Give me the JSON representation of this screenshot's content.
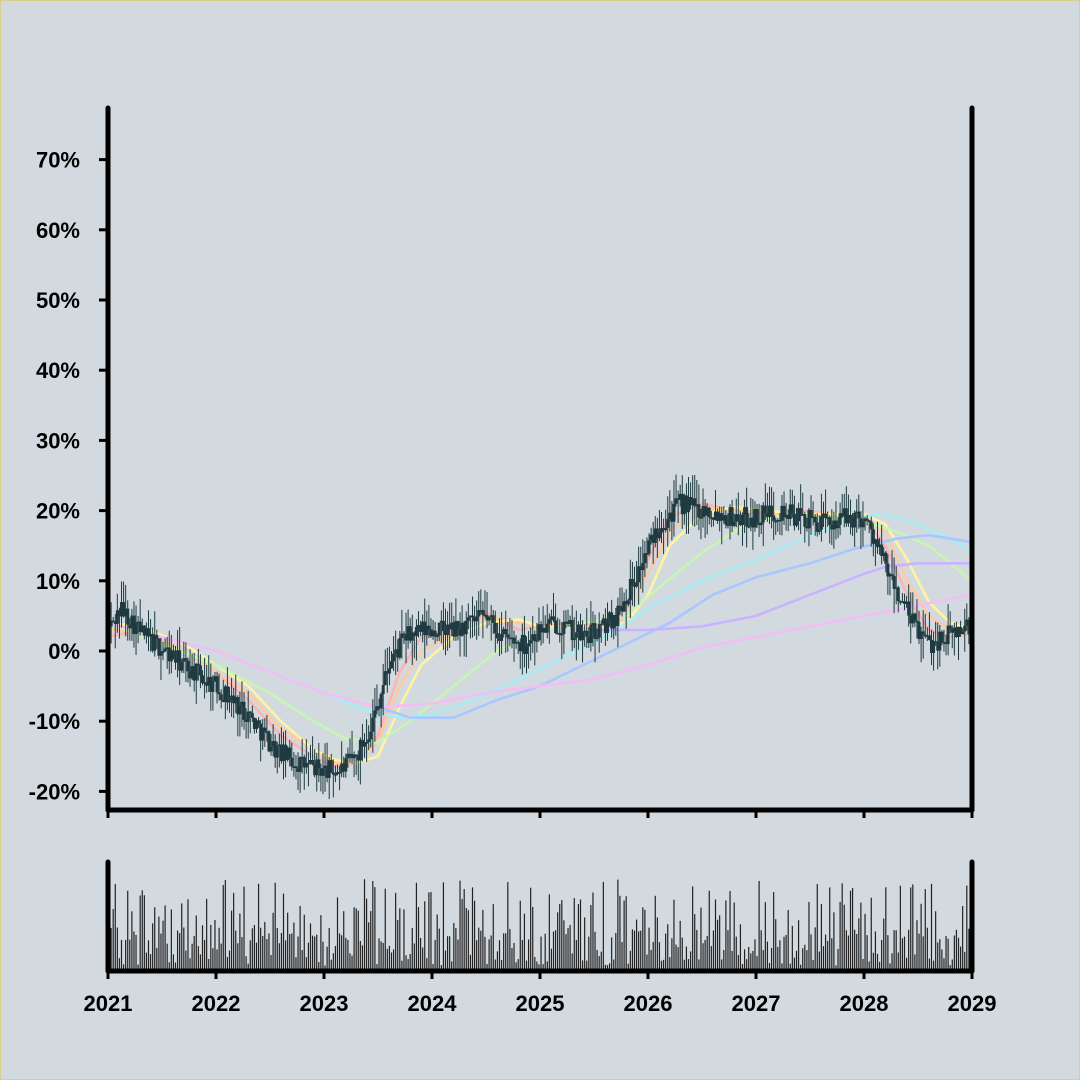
{
  "colors": {
    "background": "#d2dadf",
    "candle": "#1f3a40",
    "axis": "#000000",
    "volume": "#222222",
    "ma_lines": [
      "#ffb3b3",
      "#ffc9a3",
      "#fff3a0",
      "#c8f5b4",
      "#a8ecf5",
      "#a9c7ff",
      "#c9b3ff",
      "#f5bdf5"
    ]
  },
  "chart_data": [
    {
      "type": "candlestick",
      "title": "",
      "xlabel": "",
      "ylabel": "",
      "x_ticks": [
        "2021",
        "2022",
        "2023",
        "2024",
        "2025",
        "2026",
        "2027",
        "2028",
        "2029"
      ],
      "y_ticks": [
        "-20%",
        "-10%",
        "0%",
        "10%",
        "20%",
        "30%",
        "40%",
        "50%",
        "60%",
        "70%"
      ],
      "x_range": [
        2021,
        2029
      ],
      "ylim": [
        -22,
        78
      ],
      "grid": false,
      "frequency": "weekly",
      "path_x": [
        2021.0,
        2021.12,
        2021.35,
        2021.7,
        2022.0,
        2022.3,
        2022.55,
        2022.75,
        2023.0,
        2023.15,
        2023.3,
        2023.45,
        2023.6,
        2023.75,
        2023.95,
        2024.25,
        2024.5,
        2024.65,
        2024.85,
        2025.0,
        2025.15,
        2025.4,
        2025.55,
        2025.7,
        2025.9,
        2026.1,
        2026.3,
        2026.55,
        2026.8,
        2027.0,
        2027.2,
        2027.4,
        2027.65,
        2027.8,
        2028.0,
        2028.1,
        2028.25,
        2028.45,
        2028.6,
        2028.75,
        2028.9,
        2029.0
      ],
      "path_close": [
        3,
        6,
        2,
        -2,
        -5,
        -9,
        -14,
        -16,
        -17,
        -17,
        -15,
        -10,
        -2,
        2,
        3,
        3,
        5,
        2,
        1,
        3,
        4,
        2,
        3,
        5,
        11,
        18,
        21,
        20,
        19,
        19,
        20,
        19,
        18,
        19,
        19,
        16,
        10,
        4,
        1,
        2,
        3,
        4
      ],
      "moving_averages": [
        {
          "x": [
            2021.0,
            2021.3,
            2021.7,
            2022.0,
            2022.3,
            2022.6,
            2022.9,
            2023.1,
            2023.3,
            2023.5,
            2023.7,
            2023.9,
            2024.2,
            2024.5,
            2024.8,
            2025.0,
            2025.3,
            2025.6,
            2025.8,
            2026.0,
            2026.2,
            2026.5,
            2026.8,
            2027.1,
            2027.4,
            2027.7,
            2028.0,
            2028.2,
            2028.4,
            2028.6,
            2028.8,
            2029.0
          ],
          "y": [
            2,
            3,
            0,
            -3,
            -7,
            -12,
            -15,
            -16.5,
            -16,
            -12,
            -3,
            2,
            3,
            5.5,
            3,
            3.5,
            4,
            3.5,
            6,
            13,
            19,
            21,
            20,
            19.5,
            20,
            19.5,
            19,
            15,
            8,
            3,
            2,
            2.5
          ]
        },
        {
          "x": [
            2021.0,
            2021.3,
            2021.7,
            2022.0,
            2022.3,
            2022.6,
            2022.9,
            2023.1,
            2023.3,
            2023.5,
            2023.7,
            2023.9,
            2024.2,
            2024.5,
            2024.8,
            2025.0,
            2025.3,
            2025.6,
            2025.8,
            2026.0,
            2026.2,
            2026.5,
            2026.8,
            2027.1,
            2027.4,
            2027.7,
            2028.0,
            2028.2,
            2028.4,
            2028.6,
            2028.8,
            2029.0
          ],
          "y": [
            3,
            3,
            0,
            -3,
            -6,
            -11,
            -14,
            -16,
            -16,
            -13,
            -5,
            0,
            2.5,
            5,
            4,
            3.5,
            3.5,
            3.5,
            5,
            11,
            17,
            20.5,
            20,
            19.5,
            19.5,
            19.5,
            19,
            17,
            10,
            5,
            3,
            3
          ]
        },
        {
          "x": [
            2021.0,
            2021.3,
            2021.7,
            2022.0,
            2022.3,
            2022.6,
            2022.9,
            2023.1,
            2023.3,
            2023.5,
            2023.7,
            2023.9,
            2024.2,
            2024.5,
            2024.8,
            2025.0,
            2025.3,
            2025.6,
            2025.8,
            2026.0,
            2026.2,
            2026.5,
            2026.8,
            2027.1,
            2027.4,
            2027.7,
            2028.0,
            2028.2,
            2028.4,
            2028.6,
            2028.8,
            2029.0
          ],
          "y": [
            4,
            3.5,
            1,
            -2,
            -5,
            -10,
            -14,
            -15.5,
            -16,
            -15,
            -8,
            -2,
            2,
            4,
            4.5,
            3.5,
            3.5,
            3.5,
            4,
            8,
            15,
            19.5,
            20.5,
            20,
            19.5,
            19.5,
            19.5,
            18,
            13,
            7,
            4,
            3
          ]
        },
        {
          "x": [
            2021.0,
            2021.5,
            2022.0,
            2022.5,
            2022.9,
            2023.2,
            2023.5,
            2023.8,
            2024.2,
            2024.6,
            2025.0,
            2025.4,
            2025.8,
            2026.1,
            2026.5,
            2026.9,
            2027.3,
            2027.7,
            2028.0,
            2028.3,
            2028.6,
            2028.8,
            2029.0
          ],
          "y": [
            4,
            1,
            -2,
            -6,
            -10,
            -12.5,
            -13,
            -10,
            -5,
            0,
            3,
            4,
            5,
            9,
            14,
            18,
            19.5,
            19,
            18.5,
            17,
            15,
            12.5,
            10
          ]
        },
        {
          "x": [
            2021.0,
            2021.5,
            2022.0,
            2022.5,
            2023.0,
            2023.4,
            2023.7,
            2024.0,
            2024.4,
            2024.8,
            2025.2,
            2025.6,
            2026.0,
            2026.5,
            2027.0,
            2027.5,
            2027.9,
            2028.2,
            2028.5,
            2028.8,
            2029.0
          ],
          "y": [
            4,
            2,
            0,
            -3,
            -6,
            -8.5,
            -9.5,
            -9,
            -7,
            -4,
            -1,
            2,
            6,
            10,
            13,
            16.5,
            19,
            19.5,
            18,
            16,
            14
          ]
        },
        {
          "x": [
            2023.5,
            2023.8,
            2024.2,
            2024.6,
            2025.0,
            2025.4,
            2025.8,
            2026.2,
            2026.6,
            2027.0,
            2027.5,
            2027.9,
            2028.3,
            2028.6,
            2029.0
          ],
          "y": [
            -8,
            -9.5,
            -9.5,
            -7,
            -5,
            -2,
            1,
            4,
            8,
            10.5,
            12.5,
            14.5,
            16,
            16.5,
            15.5
          ]
        },
        {
          "x": [
            2025.5,
            2026.0,
            2026.5,
            2027.0,
            2027.5,
            2028.0,
            2028.2,
            2028.5,
            2029.0
          ],
          "y": [
            3,
            3,
            3.5,
            5,
            8,
            11,
            12,
            12.5,
            12.5
          ]
        },
        {
          "x": [
            2021.0,
            2021.5,
            2022.0,
            2022.5,
            2023.0,
            2023.5,
            2024.0,
            2024.5,
            2025.0,
            2025.5,
            2026.0,
            2026.5,
            2027.0,
            2027.5,
            2028.0,
            2028.5,
            2029.0
          ],
          "y": [
            4,
            2,
            0,
            -3,
            -6,
            -8,
            -7.5,
            -6,
            -5,
            -4,
            -2,
            0.5,
            2,
            3.5,
            5,
            6.5,
            8
          ]
        }
      ]
    },
    {
      "type": "bar",
      "title": "",
      "xlabel": "",
      "ylabel": "",
      "description_of_values": "weekly volume, relative scale 0-1",
      "x_range": [
        2021,
        2029
      ],
      "ylim": [
        0,
        1
      ]
    }
  ]
}
